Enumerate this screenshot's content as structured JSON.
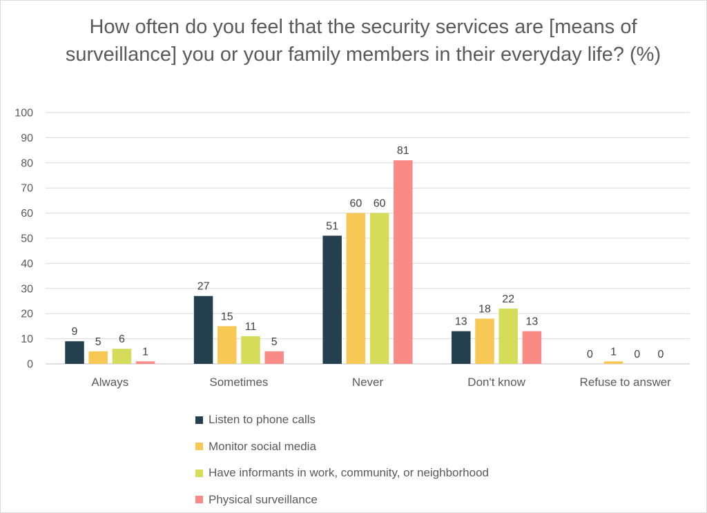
{
  "chart_data": {
    "type": "bar",
    "title": "How often do you feel that the security services are [means of surveillance] you or your family members in their everyday life? (%)",
    "xlabel": "",
    "ylabel": "",
    "ylim": [
      0,
      100
    ],
    "yticks": [
      0,
      10,
      20,
      30,
      40,
      50,
      60,
      70,
      80,
      90,
      100
    ],
    "grid": true,
    "legend_position": "bottom",
    "categories": [
      "Always",
      "Sometimes",
      "Never",
      "Don't know",
      "Refuse to answer"
    ],
    "series": [
      {
        "name": "Listen to phone calls",
        "color": "#243f4d",
        "values": [
          9,
          27,
          51,
          13,
          0
        ],
        "labels": [
          "9",
          "27",
          "51",
          "13",
          "0"
        ]
      },
      {
        "name": "Monitor social media",
        "color": "#f8c855",
        "values": [
          5,
          15,
          60,
          18,
          1
        ],
        "labels": [
          "5",
          "15",
          "60",
          "18",
          "1"
        ]
      },
      {
        "name": "Have informants in work, community, or neighborhood",
        "color": "#d4dc5a",
        "values": [
          6,
          11,
          60,
          22,
          0
        ],
        "labels": [
          "6",
          "11",
          "60",
          "22",
          "0"
        ]
      },
      {
        "name": "Physical surveillance",
        "color": "#fa8a86",
        "values": [
          1,
          5,
          81,
          13,
          0
        ],
        "labels": [
          "1",
          "5",
          "81",
          "13",
          "0"
        ]
      }
    ]
  }
}
